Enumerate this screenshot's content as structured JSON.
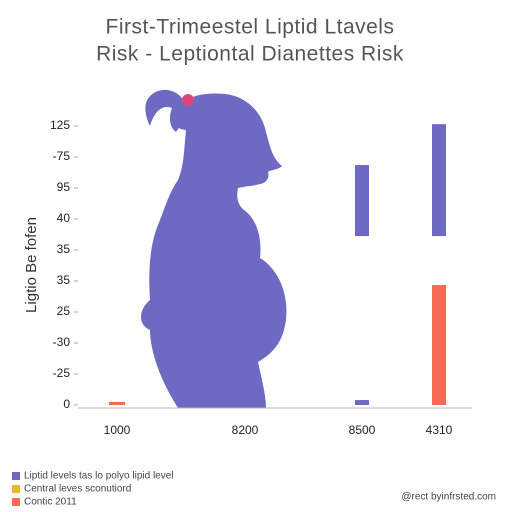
{
  "chart_data": {
    "type": "range-bar",
    "title": [
      "First-Trimeestel Liptid Ltavels",
      "Risk  -  Leptiontal Dianettes Risk"
    ],
    "y_label": "Ligtio Be fofen",
    "credit": "@rect byinfrsted.com",
    "categories": [
      "1000",
      "8200",
      "8500",
      "4310"
    ],
    "ylim": [
      0,
      9.6
    ],
    "yticks": [
      {
        "value": 0,
        "label": "0"
      },
      {
        "value": 1,
        "label": "-25"
      },
      {
        "value": 2,
        "label": "-30"
      },
      {
        "value": 3,
        "label": "25"
      },
      {
        "value": 4,
        "label": "35"
      },
      {
        "value": 5,
        "label": "35"
      },
      {
        "value": 6,
        "label": "40"
      },
      {
        "value": 7,
        "label": "95"
      },
      {
        "value": 8,
        "label": "-75"
      },
      {
        "value": 9,
        "label": "125"
      }
    ],
    "grid": false,
    "series": [
      {
        "name": "Liptid levels tas lo polyo lipid level",
        "color": "#6e6ac3",
        "ranges": [
          [],
          [],
          [
            [
              0,
              0.16
            ],
            [
              5.45,
              7.74
            ]
          ],
          [
            [
              5.45,
              9.06
            ]
          ]
        ]
      },
      {
        "name": "Central leves sconutiord",
        "color": "#f0b429",
        "ranges": [
          [],
          [],
          [],
          []
        ]
      },
      {
        "name": "Contic 2011",
        "color": "#f26b52",
        "ranges": [
          [
            [
              0,
              0.1
            ]
          ],
          [],
          [],
          [
            [
              0,
              3.87
            ]
          ]
        ]
      }
    ]
  }
}
